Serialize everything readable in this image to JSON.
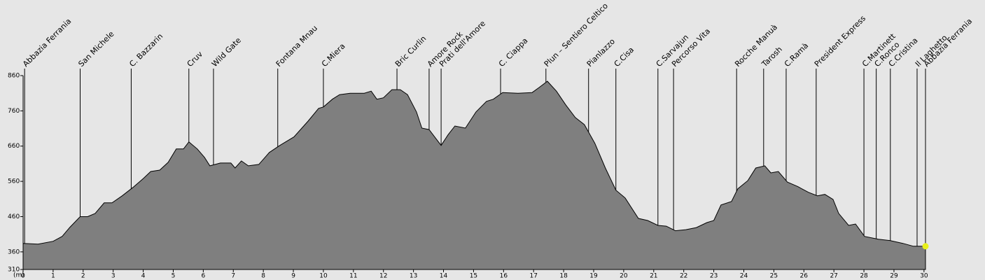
{
  "chart_data": {
    "type": "area",
    "x": [
      0,
      0.5,
      1.0,
      1.3,
      1.56,
      1.9,
      2.15,
      2.4,
      2.7,
      2.96,
      3.3,
      3.66,
      4.0,
      4.25,
      4.55,
      4.83,
      5.1,
      5.34,
      5.52,
      5.8,
      6.04,
      6.22,
      6.57,
      6.92,
      7.06,
      7.27,
      7.5,
      7.85,
      8.2,
      8.55,
      9.02,
      9.49,
      9.84,
      10.0,
      10.3,
      10.54,
      10.89,
      11.36,
      11.59,
      11.78,
      12.0,
      12.28,
      12.56,
      12.8,
      13.1,
      13.28,
      13.52,
      13.73,
      13.92,
      14.15,
      14.38,
      14.73,
      15.08,
      15.43,
      15.66,
      15.97,
      16.48,
      16.95,
      17.18,
      17.46,
      17.76,
      18.07,
      18.39,
      18.69,
      19.04,
      19.39,
      19.74,
      20.05,
      20.49,
      20.8,
      21.14,
      21.42,
      21.72,
      22.07,
      22.42,
      22.77,
      23.0,
      23.24,
      23.59,
      23.8,
      24.13,
      24.4,
      24.7,
      24.9,
      25.15,
      25.45,
      25.8,
      26.15,
      26.45,
      26.7,
      26.97,
      27.16,
      27.49,
      27.72,
      28.02,
      28.48,
      28.88,
      29.3,
      29.65,
      30.05
    ],
    "values": [
      384,
      382,
      390,
      404,
      430,
      460,
      460,
      469,
      499,
      499,
      519,
      543,
      568,
      588,
      592,
      614,
      652,
      652,
      672,
      652,
      628,
      604,
      612,
      612,
      598,
      618,
      604,
      608,
      642,
      662,
      686,
      731,
      767,
      771,
      793,
      806,
      810,
      810,
      816,
      793,
      797,
      820,
      820,
      806,
      757,
      711,
      707,
      683,
      662,
      692,
      717,
      711,
      757,
      787,
      793,
      812,
      810,
      812,
      826,
      844,
      816,
      777,
      741,
      721,
      668,
      598,
      535,
      513,
      455,
      449,
      435,
      433,
      420,
      423,
      429,
      443,
      449,
      493,
      503,
      539,
      562,
      598,
      604,
      584,
      588,
      558,
      545,
      529,
      519,
      523,
      509,
      469,
      435,
      439,
      404,
      396,
      392,
      384,
      376,
      376
    ],
    "color": "#7f7f7f",
    "end_marker_color": "#e8f01a",
    "xlim": [
      0,
      30.05
    ],
    "ylim": [
      310,
      860
    ],
    "xticks": [
      0,
      1,
      2,
      3,
      4,
      5,
      6,
      7,
      8,
      9,
      10,
      11,
      12,
      13,
      14,
      15,
      16,
      17,
      18,
      19,
      20,
      21,
      22,
      23,
      24,
      25,
      26,
      27,
      28,
      29,
      30
    ],
    "yticks": [
      310,
      360,
      460,
      560,
      660,
      760,
      860
    ],
    "y_unit": "(m)",
    "waypoints": [
      {
        "name": "Abbazia Ferrania",
        "x": 0.05
      },
      {
        "name": "San Michele",
        "x": 1.9
      },
      {
        "name": "C. Bazzarin",
        "x": 3.6
      },
      {
        "name": "Cruv",
        "x": 5.52
      },
      {
        "name": "Wild Gate",
        "x": 6.34
      },
      {
        "name": "Fontana Mnau",
        "x": 8.48
      },
      {
        "name": "C.Miera",
        "x": 10.0
      },
      {
        "name": "Bric Curlin",
        "x": 12.45
      },
      {
        "name": "Amore Rock",
        "x": 13.52
      },
      {
        "name": "Prati dell'Amore",
        "x": 13.92
      },
      {
        "name": "C. Ciappa",
        "x": 15.9
      },
      {
        "name": "Plun – Sentiero Celtico",
        "x": 17.41
      },
      {
        "name": "Pianlazzo",
        "x": 18.83
      },
      {
        "name": "C.Cisa",
        "x": 19.74
      },
      {
        "name": "C.Sarvajun",
        "x": 21.14
      },
      {
        "name": "Percorso Vita",
        "x": 21.66
      },
      {
        "name": "Rocche Manuà",
        "x": 23.76
      },
      {
        "name": "Tarosh",
        "x": 24.66
      },
      {
        "name": "C.Ramà",
        "x": 25.41
      },
      {
        "name": "President Express",
        "x": 26.41
      },
      {
        "name": "C.Martinett",
        "x": 28.0
      },
      {
        "name": "C.Ronco",
        "x": 28.41
      },
      {
        "name": "C.Cristina",
        "x": 28.88
      },
      {
        "name": "Il Laghetto",
        "x": 29.77
      },
      {
        "name": "Abbazia Ferrania",
        "x": 30.05
      }
    ]
  }
}
